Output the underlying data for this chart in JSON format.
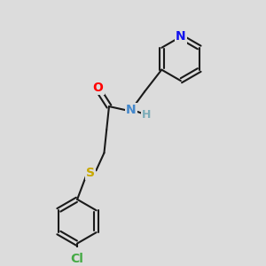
{
  "background_color": "#dcdcdc",
  "bond_color": "#1a1a1a",
  "bond_width": 1.5,
  "atom_colors": {
    "O": "#ff0000",
    "N_amide": "#4488cc",
    "H": "#7aacb8",
    "S": "#c8a800",
    "Cl": "#44aa44",
    "N_pyridine": "#1111ee"
  },
  "font_size_atoms": 10,
  "font_size_H": 9
}
